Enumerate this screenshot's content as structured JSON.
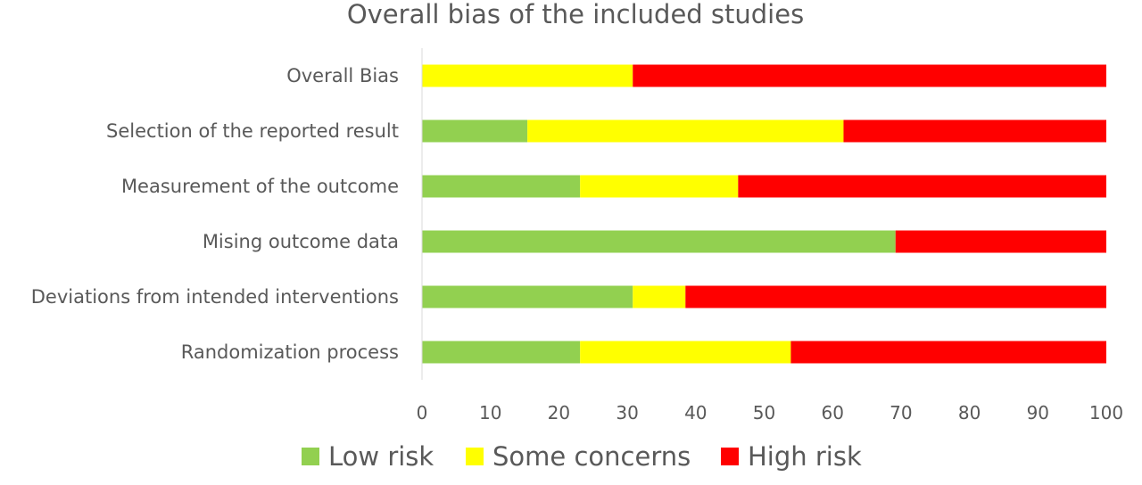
{
  "chart_data": {
    "type": "bar",
    "orientation": "horizontal",
    "stacked": true,
    "title": "Overall bias of the included studies",
    "categories": [
      "Overall Bias",
      "Selection of the reported result",
      "Measurement of the outcome",
      "Mising outcome data",
      "Deviations from intended interventions",
      "Randomization process"
    ],
    "series": [
      {
        "name": "Low risk",
        "color": "#92D050",
        "values": [
          0,
          15.4,
          23.1,
          69.2,
          30.8,
          23.1
        ]
      },
      {
        "name": "Some concerns",
        "color": "#FFFF00",
        "values": [
          30.8,
          46.2,
          23.1,
          0,
          7.7,
          30.8
        ]
      },
      {
        "name": "High risk",
        "color": "#FF0000",
        "values": [
          69.2,
          38.4,
          53.8,
          30.8,
          61.5,
          46.1
        ]
      }
    ],
    "xlim": [
      0,
      100
    ],
    "xticks": [
      "0",
      "10",
      "20",
      "30",
      "40",
      "50",
      "60",
      "70",
      "80",
      "90",
      "100"
    ],
    "grid": false,
    "legend_position": "bottom"
  }
}
